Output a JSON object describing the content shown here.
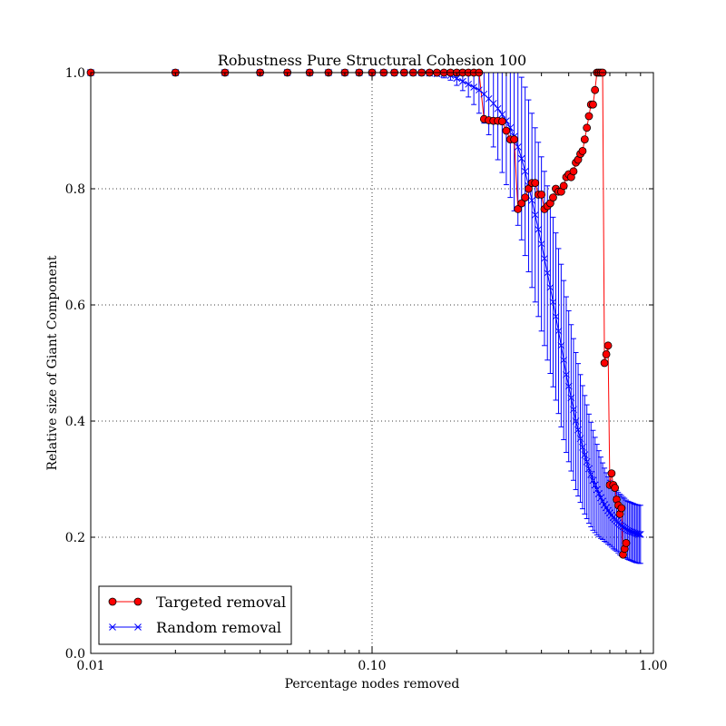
{
  "chart_data": {
    "type": "line",
    "title": "Robustness Pure Structural Cohesion 100",
    "xlabel": "Percentage nodes removed",
    "ylabel": "Relative size of Giant Component",
    "xscale": "log",
    "xlim": [
      0.01,
      1.0
    ],
    "ylim": [
      0.0,
      1.0
    ],
    "x_ticks": [
      0.01,
      0.1,
      1.0
    ],
    "x_tick_labels": [
      "0.01",
      "0.10",
      "1.00"
    ],
    "y_ticks": [
      0.0,
      0.2,
      0.4,
      0.6,
      0.8,
      1.0
    ],
    "y_tick_labels": [
      "0.0",
      "0.2",
      "0.4",
      "0.6",
      "0.8",
      "1.0"
    ],
    "grid": true,
    "legend_position": "bottom-left",
    "series": [
      {
        "name": "Targeted removal",
        "color": "#ff0000",
        "marker": "circle",
        "x": [
          0.01,
          0.02,
          0.03,
          0.04,
          0.05,
          0.06,
          0.07,
          0.08,
          0.09,
          0.1,
          0.11,
          0.12,
          0.13,
          0.14,
          0.15,
          0.16,
          0.17,
          0.18,
          0.19,
          0.2,
          0.21,
          0.22,
          0.23,
          0.24,
          0.25,
          0.26,
          0.27,
          0.28,
          0.29,
          0.3,
          0.31,
          0.32,
          0.33,
          0.34,
          0.35,
          0.36,
          0.37,
          0.38,
          0.39,
          0.4,
          0.41,
          0.42,
          0.43,
          0.44,
          0.45,
          0.46,
          0.47,
          0.48,
          0.49,
          0.5,
          0.51,
          0.52,
          0.53,
          0.54,
          0.55,
          0.56,
          0.57,
          0.58,
          0.59,
          0.6,
          0.61,
          0.62,
          0.63,
          0.64,
          0.65,
          0.66,
          0.67,
          0.68,
          0.69,
          0.7,
          0.71,
          0.72,
          0.73,
          0.74,
          0.75,
          0.76,
          0.77,
          0.78,
          0.79,
          0.8
        ],
        "y": [
          1.0,
          1.0,
          1.0,
          1.0,
          1.0,
          1.0,
          1.0,
          1.0,
          1.0,
          1.0,
          1.0,
          1.0,
          1.0,
          1.0,
          1.0,
          1.0,
          1.0,
          1.0,
          1.0,
          1.0,
          1.0,
          1.0,
          1.0,
          1.0,
          0.92,
          0.918,
          0.917,
          0.917,
          0.916,
          0.9,
          0.885,
          0.885,
          0.765,
          0.775,
          0.785,
          0.8,
          0.81,
          0.81,
          0.79,
          0.79,
          0.765,
          0.77,
          0.775,
          0.785,
          0.8,
          0.795,
          0.795,
          0.805,
          0.82,
          0.825,
          0.82,
          0.83,
          0.845,
          0.85,
          0.86,
          0.865,
          0.885,
          0.905,
          0.925,
          0.945,
          0.945,
          0.97,
          1.0,
          1.0,
          1.0,
          1.0,
          0.5,
          0.515,
          0.53,
          0.29,
          0.31,
          0.29,
          0.285,
          0.265,
          0.255,
          0.24,
          0.25,
          0.17,
          0.18,
          0.19
        ]
      },
      {
        "name": "Random removal",
        "color": "#0000ff",
        "marker": "x",
        "x": [
          0.01,
          0.02,
          0.03,
          0.04,
          0.05,
          0.06,
          0.07,
          0.08,
          0.09,
          0.1,
          0.11,
          0.12,
          0.13,
          0.14,
          0.15,
          0.16,
          0.17,
          0.18,
          0.19,
          0.2,
          0.21,
          0.22,
          0.23,
          0.24,
          0.25,
          0.26,
          0.27,
          0.28,
          0.29,
          0.3,
          0.31,
          0.32,
          0.33,
          0.34,
          0.35,
          0.36,
          0.37,
          0.38,
          0.39,
          0.4,
          0.41,
          0.42,
          0.43,
          0.44,
          0.45,
          0.46,
          0.47,
          0.48,
          0.49,
          0.5,
          0.51,
          0.52,
          0.53,
          0.54,
          0.55,
          0.56,
          0.57,
          0.58,
          0.59,
          0.6,
          0.61,
          0.62,
          0.63,
          0.64,
          0.65,
          0.66,
          0.67,
          0.68,
          0.69,
          0.7,
          0.71,
          0.72,
          0.73,
          0.74,
          0.75,
          0.76,
          0.77,
          0.78,
          0.79,
          0.8,
          0.81,
          0.82,
          0.83,
          0.84,
          0.85,
          0.86,
          0.87,
          0.88,
          0.89,
          0.9
        ],
        "y": [
          1.0,
          1.0,
          1.0,
          1.0,
          1.0,
          1.0,
          1.0,
          1.0,
          1.0,
          1.0,
          1.0,
          1.0,
          1.0,
          1.0,
          1.0,
          0.999,
          0.998,
          0.997,
          0.995,
          0.99,
          0.985,
          0.98,
          0.975,
          0.97,
          0.963,
          0.955,
          0.947,
          0.938,
          0.928,
          0.917,
          0.905,
          0.89,
          0.872,
          0.852,
          0.83,
          0.805,
          0.78,
          0.755,
          0.73,
          0.705,
          0.68,
          0.655,
          0.63,
          0.605,
          0.58,
          0.555,
          0.53,
          0.505,
          0.48,
          0.46,
          0.44,
          0.42,
          0.4,
          0.385,
          0.37,
          0.355,
          0.342,
          0.33,
          0.318,
          0.308,
          0.298,
          0.29,
          0.282,
          0.275,
          0.268,
          0.262,
          0.256,
          0.251,
          0.246,
          0.242,
          0.238,
          0.234,
          0.231,
          0.228,
          0.225,
          0.222,
          0.22,
          0.218,
          0.216,
          0.214,
          0.212,
          0.211,
          0.21,
          0.209,
          0.208,
          0.207,
          0.206,
          0.206,
          0.205,
          0.205
        ],
        "yerr": [
          0.0,
          0.0,
          0.0,
          0.0,
          0.0,
          0.0,
          0.0,
          0.0,
          0.0,
          0.0,
          0.0,
          0.0,
          0.0,
          0.0,
          0.0,
          0.002,
          0.004,
          0.006,
          0.008,
          0.012,
          0.016,
          0.022,
          0.03,
          0.04,
          0.05,
          0.062,
          0.075,
          0.088,
          0.1,
          0.11,
          0.12,
          0.128,
          0.135,
          0.14,
          0.145,
          0.148,
          0.15,
          0.15,
          0.15,
          0.15,
          0.15,
          0.15,
          0.148,
          0.146,
          0.144,
          0.142,
          0.14,
          0.137,
          0.134,
          0.13,
          0.126,
          0.122,
          0.118,
          0.114,
          0.11,
          0.106,
          0.102,
          0.098,
          0.094,
          0.09,
          0.086,
          0.082,
          0.078,
          0.074,
          0.07,
          0.066,
          0.063,
          0.06,
          0.058,
          0.056,
          0.055,
          0.054,
          0.053,
          0.052,
          0.052,
          0.052,
          0.052,
          0.051,
          0.051,
          0.05,
          0.05,
          0.05,
          0.05,
          0.05,
          0.05,
          0.05,
          0.05,
          0.05,
          0.05,
          0.05
        ]
      }
    ]
  }
}
